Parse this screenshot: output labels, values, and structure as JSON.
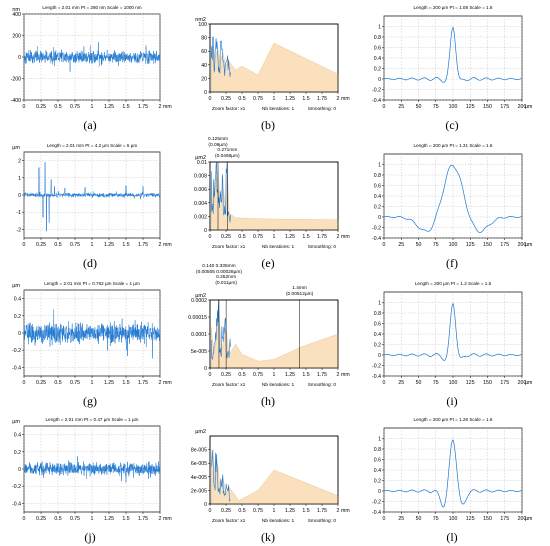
{
  "colors": {
    "line": "#1f78d1",
    "fill": "#fbe0bd",
    "fill_stroke": "#e8c89a",
    "axis": "#000000",
    "grid": "#b4b4b4",
    "bg": "#ffffff"
  },
  "chart_data": [
    {
      "id": "a",
      "caption": "(a)",
      "type": "line",
      "header": "Length = 2.01 mm   Pt = 280 nm   Scale = 1000 nm",
      "yunit": "nm",
      "xunit": "mm",
      "xlim": [
        0,
        2
      ],
      "ylim": [
        -400,
        400
      ],
      "xticks": [
        "0",
        "0.25",
        "0.5",
        "0.75",
        "1",
        "1.25",
        "1.5",
        "1.75",
        "2"
      ],
      "yticks": [
        "400",
        "200",
        "0",
        "-200",
        "-400"
      ],
      "noise_amp": 55,
      "spikes": []
    },
    {
      "id": "b",
      "caption": "(b)",
      "type": "area",
      "header": "",
      "yunit": "nm2",
      "xunit": "mm",
      "xlim": [
        0,
        2
      ],
      "ylim": [
        0,
        100
      ],
      "xticks": [
        "0",
        "0.25",
        "0.5",
        "0.75",
        "1",
        "1.25",
        "1.5",
        "1.75",
        "2"
      ],
      "yticks": [
        "100",
        "80",
        "60",
        "40",
        "20",
        "0"
      ],
      "profile": [
        [
          0.02,
          55
        ],
        [
          0.05,
          70
        ],
        [
          0.08,
          48
        ],
        [
          0.12,
          65
        ],
        [
          0.16,
          42
        ],
        [
          0.2,
          58
        ],
        [
          0.25,
          38
        ],
        [
          0.3,
          45
        ],
        [
          0.4,
          32
        ],
        [
          0.5,
          38
        ],
        [
          0.75,
          25
        ],
        [
          1.0,
          72
        ],
        [
          2.0,
          26
        ]
      ],
      "footer": [
        "Zoom factor: x1",
        "Nb iterations: 1",
        "Smoothing: 0"
      ],
      "markers": []
    },
    {
      "id": "c",
      "caption": "(c)",
      "type": "acf",
      "header": "Length = 200 µm   Pt = 1.08   Scale = 1.6",
      "yunit": "",
      "xunit": "µm",
      "xlim": [
        0,
        200
      ],
      "ylim": [
        -0.4,
        1.2
      ],
      "xticks": [
        "0",
        "25",
        "50",
        "75",
        "100",
        "125",
        "150",
        "175",
        "200"
      ],
      "yticks": [
        "1",
        "0.8",
        "0.6",
        "0.4",
        "0.2",
        "0",
        "-0.2",
        "-0.4"
      ],
      "peak": 1.0,
      "width": 4,
      "side": -0.05
    },
    {
      "id": "d",
      "caption": "(d)",
      "type": "line",
      "header": "Length = 2.01 mm   Pt = 4.2 µm   Scale = 5 µm",
      "yunit": "µm",
      "xunit": "mm",
      "xlim": [
        0,
        2
      ],
      "ylim": [
        -2.5,
        2.5
      ],
      "xticks": [
        "0",
        "0.25",
        "0.5",
        "0.75",
        "1",
        "1.25",
        "1.5",
        "1.75",
        "2"
      ],
      "yticks": [
        "2",
        "1",
        "0",
        "-1",
        "-2"
      ],
      "noise_amp": 0.12,
      "spikes": [
        [
          0.22,
          1.6
        ],
        [
          0.28,
          -1.3
        ],
        [
          0.31,
          1.9
        ],
        [
          0.33,
          -2.1
        ],
        [
          0.37,
          -1.6
        ],
        [
          0.4,
          0.9
        ],
        [
          0.45,
          0.5
        ],
        [
          0.6,
          0.4
        ],
        [
          0.9,
          0.45
        ],
        [
          1.5,
          0.55
        ],
        [
          1.75,
          0.5
        ]
      ]
    },
    {
      "id": "e",
      "caption": "(e)",
      "type": "area",
      "header": "",
      "yunit": "µm2",
      "xunit": "mm",
      "xlim": [
        0,
        2
      ],
      "ylim": [
        0,
        0.01
      ],
      "xticks": [
        "0",
        "0.25",
        "0.5",
        "0.75",
        "1",
        "1.25",
        "1.5",
        "1.75",
        "2"
      ],
      "yticks": [
        "0.01",
        "0.008",
        "0.006",
        "0.004",
        "0.002",
        "0"
      ],
      "profile": [
        [
          0.02,
          0.0075
        ],
        [
          0.05,
          0.003
        ],
        [
          0.09,
          0.007
        ],
        [
          0.125,
          0.009
        ],
        [
          0.16,
          0.004
        ],
        [
          0.2,
          0.0065
        ],
        [
          0.25,
          0.003
        ],
        [
          0.271,
          0.0085
        ],
        [
          0.3,
          0.0025
        ],
        [
          0.4,
          0.0018
        ],
        [
          0.6,
          0.0017
        ],
        [
          1.0,
          0.0016
        ],
        [
          2.0,
          0.0015
        ]
      ],
      "footer": [
        "Zoom factor: x1",
        "Nb iterations: 1",
        "Smoothing: 0"
      ],
      "markers": [
        {
          "x": 0.125,
          "label1": "0.125mm",
          "label2": "(0.09µm)"
        },
        {
          "x": 0.271,
          "label1": "0.271mm",
          "label2": "(0.0466µm)"
        }
      ]
    },
    {
      "id": "f",
      "caption": "(f)",
      "type": "acf",
      "header": "Length = 200 µm   Pt = 1.31   Scale = 1.6",
      "yunit": "",
      "xunit": "µm",
      "xlim": [
        0,
        200
      ],
      "ylim": [
        -0.4,
        1.2
      ],
      "xticks": [
        "0",
        "25",
        "50",
        "75",
        "100",
        "125",
        "150",
        "175",
        "200"
      ],
      "yticks": [
        "1",
        "0.8",
        "0.6",
        "0.4",
        "0.2",
        "0",
        "-0.2",
        "-0.4"
      ],
      "peak": 1.0,
      "width": 14,
      "side": -0.3
    },
    {
      "id": "g",
      "caption": "(g)",
      "type": "line",
      "header": "Length = 2.01 mm   Pt = 0.762 µm   Scale = 1 µm",
      "yunit": "µm",
      "xunit": "mm",
      "xlim": [
        0,
        2
      ],
      "ylim": [
        -0.5,
        0.5
      ],
      "xticks": [
        "0",
        "0.25",
        "0.5",
        "0.75",
        "1",
        "1.25",
        "1.5",
        "1.75",
        "2"
      ],
      "yticks": [
        "0.4",
        "0.2",
        "0",
        "-0.2",
        "-0.4"
      ],
      "noise_amp": 0.12,
      "spikes": []
    },
    {
      "id": "h",
      "caption": "(h)",
      "type": "area",
      "header": "",
      "yunit": "µm2",
      "xunit": "mm",
      "xlim": [
        0,
        2
      ],
      "ylim": [
        0,
        0.0002
      ],
      "xticks": [
        "0",
        "0.25",
        "0.5",
        "0.75",
        "1",
        "1.25",
        "1.5",
        "1.75",
        "2"
      ],
      "yticks": [
        "0.0002",
        "0.00015",
        "0.0001",
        "5e-005",
        "0"
      ],
      "profile": [
        [
          0.02,
          0.00012
        ],
        [
          0.06,
          4e-05
        ],
        [
          0.1,
          9e-05
        ],
        [
          0.14,
          0.00016
        ],
        [
          0.18,
          5e-05
        ],
        [
          0.25,
          0.00012
        ],
        [
          0.3,
          4e-05
        ],
        [
          0.4,
          7e-05
        ],
        [
          0.5,
          4e-05
        ],
        [
          0.75,
          2e-05
        ],
        [
          1.0,
          2.5e-05
        ],
        [
          1.4,
          6e-05
        ],
        [
          2.0,
          0.0001
        ]
      ],
      "footer": [
        "Zoom factor: x1",
        "Nb iterations: 1",
        "Smoothing: 0"
      ],
      "markers": [
        {
          "x": 0.14,
          "label1": "0.140 0.335mm",
          "label2": "(0.00505 0.00028µm)"
        },
        {
          "x": 0.252,
          "label1": "0.252mm",
          "label2": "(0.011µm)"
        },
        {
          "x": 1.4,
          "label1": "1.4mm",
          "label2": "(0.00512µm)"
        }
      ]
    },
    {
      "id": "i",
      "caption": "(i)",
      "type": "acf",
      "header": "Length = 200 µm   Pt = 1.2   Scale = 1.6",
      "yunit": "",
      "xunit": "µm",
      "xlim": [
        0,
        200
      ],
      "ylim": [
        -0.4,
        1.2
      ],
      "xticks": [
        "0",
        "25",
        "50",
        "75",
        "100",
        "125",
        "150",
        "175",
        "200"
      ],
      "yticks": [
        "1",
        "0.8",
        "0.6",
        "0.4",
        "0.2",
        "0",
        "-0.2",
        "-0.4"
      ],
      "peak": 1.0,
      "width": 4,
      "side": -0.1
    },
    {
      "id": "j",
      "caption": "(j)",
      "type": "line",
      "header": "Length = 2.01 mm   Pt = 0.47 µm   Scale = 1 µm",
      "yunit": "µm",
      "xunit": "mm",
      "xlim": [
        0,
        2
      ],
      "ylim": [
        -0.5,
        0.5
      ],
      "xticks": [
        "0",
        "0.25",
        "0.5",
        "0.75",
        "1",
        "1.25",
        "1.5",
        "1.75",
        "2"
      ],
      "yticks": [
        "0.4",
        "0.2",
        "0",
        "-0.2",
        "-0.4"
      ],
      "noise_amp": 0.07,
      "spikes": []
    },
    {
      "id": "k",
      "caption": "(k)",
      "type": "area",
      "header": "",
      "yunit": "µm2",
      "xunit": "mm",
      "xlim": [
        0,
        2
      ],
      "ylim": [
        0,
        0.0001
      ],
      "xticks": [
        "0",
        "0.25",
        "0.5",
        "0.75",
        "1",
        "1.25",
        "1.5",
        "1.75",
        "2"
      ],
      "yticks": [
        "8e-005",
        "6e-005",
        "4e-005",
        "2e-005",
        "0"
      ],
      "profile": [
        [
          0.02,
          6e-05
        ],
        [
          0.05,
          8e-05
        ],
        [
          0.08,
          3e-05
        ],
        [
          0.12,
          6e-05
        ],
        [
          0.16,
          2e-05
        ],
        [
          0.2,
          4e-05
        ],
        [
          0.25,
          1.5e-05
        ],
        [
          0.3,
          2.5e-05
        ],
        [
          0.45,
          5e-06
        ],
        [
          0.75,
          2e-05
        ],
        [
          1.0,
          5e-05
        ],
        [
          2.0,
          1.2e-05
        ]
      ],
      "footer": [
        "Zoom factor: x1",
        "Nb iterations: 1",
        "Smoothing: 0"
      ],
      "markers": []
    },
    {
      "id": "l",
      "caption": "(l)",
      "type": "acf",
      "header": "Length = 200 µm   Pt = 1.26   Scale = 1.6",
      "yunit": "",
      "xunit": "µm",
      "xlim": [
        0,
        200
      ],
      "ylim": [
        -0.4,
        1.2
      ],
      "xticks": [
        "0",
        "25",
        "50",
        "75",
        "100",
        "125",
        "150",
        "175",
        "200"
      ],
      "yticks": [
        "1",
        "0.8",
        "0.6",
        "0.4",
        "0.2",
        "0",
        "-0.2",
        "-0.4"
      ],
      "peak": 1.0,
      "width": 5,
      "side": -0.3
    }
  ]
}
